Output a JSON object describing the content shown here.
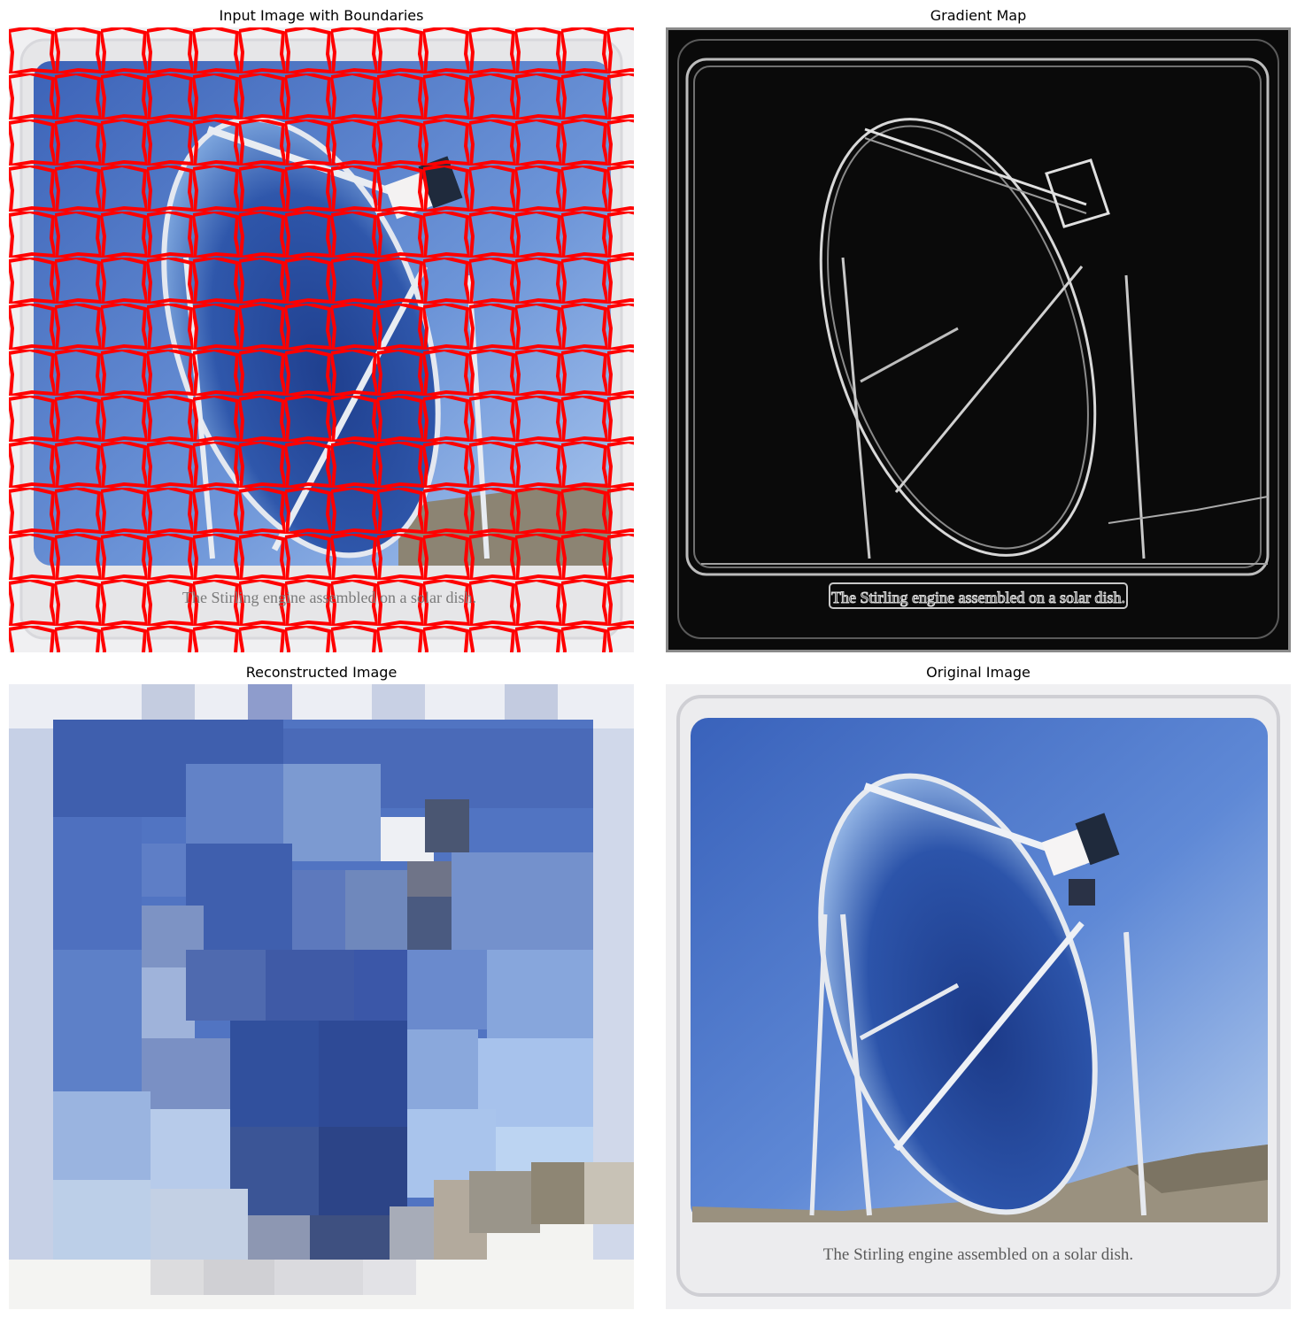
{
  "figure": {
    "panels": [
      {
        "id": "boundaries",
        "title": "Input Image with Boundaries"
      },
      {
        "id": "gradient",
        "title": "Gradient Map"
      },
      {
        "id": "reconstructed",
        "title": "Reconstructed Image"
      },
      {
        "id": "original",
        "title": "Original Image"
      }
    ]
  },
  "photo": {
    "caption": "The Stirling engine assembled on a solar dish."
  },
  "colors": {
    "boundary": "#ff0000",
    "sky": "#3f6cc6",
    "frame": "#eeeeee",
    "gradient_bg": "#050505"
  }
}
